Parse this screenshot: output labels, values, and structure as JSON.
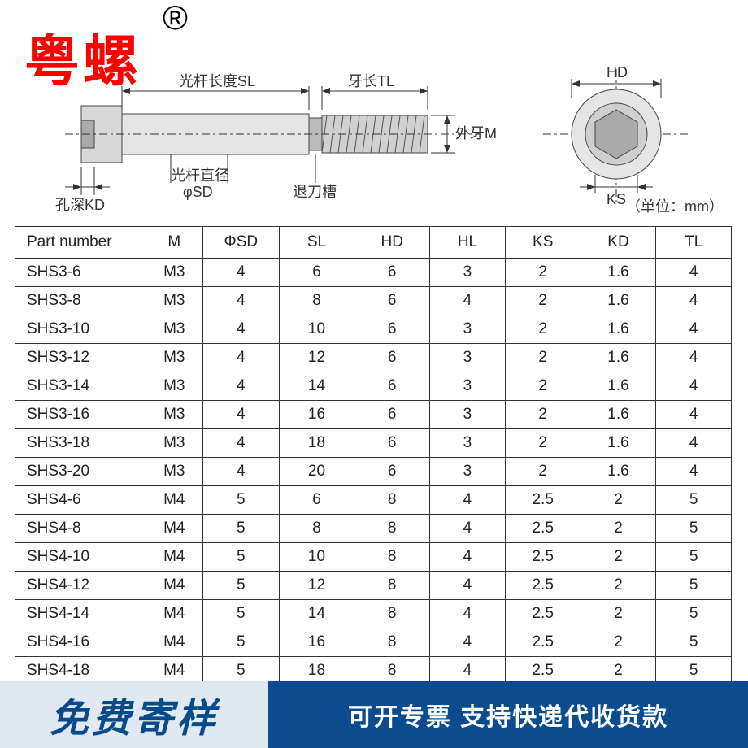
{
  "brand": "粤螺",
  "regmark": "®",
  "diagram_labels": {
    "sl": "光杆长度SL",
    "tl": "牙长TL",
    "m": "外牙M",
    "sd_dia": "光杆直径",
    "phi_sd": "φSD",
    "relief": "退刀槽",
    "kd": "孔深KD",
    "hd": "HD",
    "ks": "KS"
  },
  "unit": "（单位：mm）",
  "table": {
    "columns": [
      "Part number",
      "M",
      "ΦSD",
      "SL",
      "HD",
      "HL",
      "KS",
      "KD",
      "TL"
    ],
    "rows": [
      [
        "SHS3-6",
        "M3",
        "4",
        "6",
        "6",
        "3",
        "2",
        "1.6",
        "4"
      ],
      [
        "SHS3-8",
        "M3",
        "4",
        "8",
        "6",
        "4",
        "2",
        "1.6",
        "4"
      ],
      [
        "SHS3-10",
        "M3",
        "4",
        "10",
        "6",
        "3",
        "2",
        "1.6",
        "4"
      ],
      [
        "SHS3-12",
        "M3",
        "4",
        "12",
        "6",
        "3",
        "2",
        "1.6",
        "4"
      ],
      [
        "SHS3-14",
        "M3",
        "4",
        "14",
        "6",
        "3",
        "2",
        "1.6",
        "4"
      ],
      [
        "SHS3-16",
        "M3",
        "4",
        "16",
        "6",
        "3",
        "2",
        "1.6",
        "4"
      ],
      [
        "SHS3-18",
        "M3",
        "4",
        "18",
        "6",
        "3",
        "2",
        "1.6",
        "4"
      ],
      [
        "SHS3-20",
        "M3",
        "4",
        "20",
        "6",
        "3",
        "2",
        "1.6",
        "4"
      ],
      [
        "SHS4-6",
        "M4",
        "5",
        "6",
        "8",
        "4",
        "2.5",
        "2",
        "5"
      ],
      [
        "SHS4-8",
        "M4",
        "5",
        "8",
        "8",
        "4",
        "2.5",
        "2",
        "5"
      ],
      [
        "SHS4-10",
        "M4",
        "5",
        "10",
        "8",
        "4",
        "2.5",
        "2",
        "5"
      ],
      [
        "SHS4-12",
        "M4",
        "5",
        "12",
        "8",
        "4",
        "2.5",
        "2",
        "5"
      ],
      [
        "SHS4-14",
        "M4",
        "5",
        "14",
        "8",
        "4",
        "2.5",
        "2",
        "5"
      ],
      [
        "SHS4-16",
        "M4",
        "5",
        "16",
        "8",
        "4",
        "2.5",
        "2",
        "5"
      ],
      [
        "SHS4-18",
        "M4",
        "5",
        "18",
        "8",
        "4",
        "2.5",
        "2",
        "5"
      ]
    ]
  },
  "watermark": "粤螺",
  "footer": {
    "left": "免费寄样",
    "right": "可开专票 支持快递代收货款"
  },
  "colors": {
    "brand": "#ff0000",
    "table_border": "#333333",
    "footer_left_bg": "#e0e9f1",
    "footer_left_fg": "#084a8a",
    "footer_right_bg": "#0a4c8e",
    "footer_right_fg": "#ffffff",
    "diagram_line": "#666666",
    "screw_fill": "#d8d8d8"
  }
}
